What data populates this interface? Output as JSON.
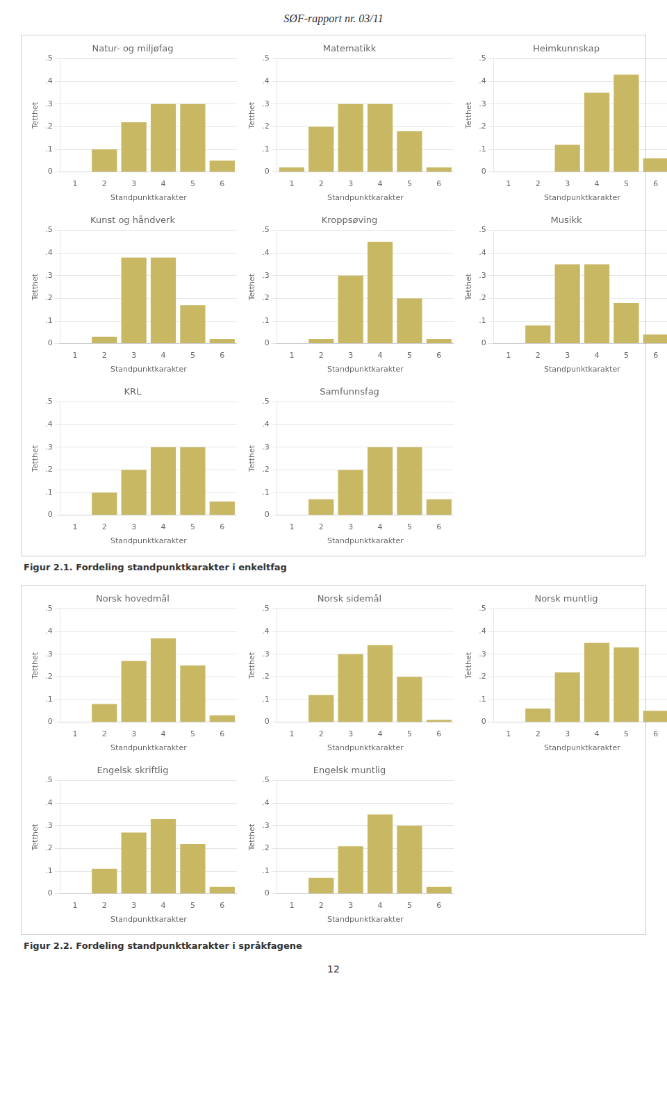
{
  "title": "SØF-rapport nr. 03/11",
  "annotations": [
    "12"
  ],
  "chart_data": [
    {
      "type": "bar",
      "title": "Natur- og miljøfag",
      "xlabel": "Standpunktkarakter",
      "ylabel": "Tetthet",
      "categories": [
        "1",
        "2",
        "3",
        "4",
        "5",
        "6"
      ],
      "values": [
        0,
        0.1,
        0.22,
        0.3,
        0.3,
        0.05
      ],
      "color": "#C8B864",
      "ylim": [
        0,
        0.5
      ],
      "yticks": [
        0,
        {
          "value": 0.1,
          "label": ".1"
        },
        {
          "value": 0.2,
          "label": ".2"
        },
        {
          "value": 0.3,
          "label": ".3"
        },
        {
          "value": 0.4,
          "label": ".4"
        },
        {
          "value": 0.5,
          "label": ".5"
        }
      ],
      "grid": true
    },
    {
      "type": "bar",
      "title": "Matematikk",
      "xlabel": "Standpunktkarakter",
      "ylabel": "Tetthet",
      "categories": [
        "1",
        "2",
        "3",
        "4",
        "5",
        "6"
      ],
      "values": [
        0.02,
        0.2,
        0.3,
        0.3,
        0.18,
        0.02
      ],
      "color": "#C8B864",
      "ylim": [
        0,
        0.5
      ],
      "yticks": [
        0,
        {
          "value": 0.1,
          "label": ".1"
        },
        {
          "value": 0.2,
          "label": ".2"
        },
        {
          "value": 0.3,
          "label": ".3"
        },
        {
          "value": 0.4,
          "label": ".4"
        },
        {
          "value": 0.5,
          "label": ".5"
        }
      ],
      "grid": true
    },
    {
      "type": "bar",
      "title": "Heimkunnskap",
      "xlabel": "Standpunktkarakter",
      "ylabel": "Tetthet",
      "categories": [
        "1",
        "2",
        "3",
        "4",
        "5",
        "6"
      ],
      "values": [
        0,
        0,
        0.12,
        0.35,
        0.43,
        0.06
      ],
      "color": "#C8B864",
      "ylim": [
        0,
        0.5
      ],
      "yticks": [
        0,
        {
          "value": 0.1,
          "label": ".1"
        },
        {
          "value": 0.2,
          "label": ".2"
        },
        {
          "value": 0.3,
          "label": ".3"
        },
        {
          "value": 0.4,
          "label": ".4"
        },
        {
          "value": 0.5,
          "label": ".5"
        }
      ],
      "grid": true
    },
    {
      "type": "bar",
      "title": "Kunst og håndverk",
      "xlabel": "Standpunktkarakter",
      "ylabel": "Tetthet",
      "categories": [
        "1",
        "2",
        "3",
        "4",
        "5",
        "6"
      ],
      "values": [
        0,
        0.03,
        0.38,
        0.38,
        0.17,
        0.02
      ],
      "color": "#C8B864",
      "ylim": [
        0,
        0.5
      ],
      "yticks": [
        0,
        {
          "value": 0.1,
          "label": ".1"
        },
        {
          "value": 0.2,
          "label": ".2"
        },
        {
          "value": 0.3,
          "label": ".3"
        },
        {
          "value": 0.4,
          "label": ".4"
        },
        {
          "value": 0.5,
          "label": ".5"
        }
      ],
      "grid": true
    },
    {
      "type": "bar",
      "title": "Kroppsøving",
      "xlabel": "Standpunktkarakter",
      "ylabel": "Tetthet",
      "categories": [
        "1",
        "2",
        "3",
        "4",
        "5",
        "6"
      ],
      "values": [
        0,
        0.02,
        0.3,
        0.45,
        0.2,
        0.02
      ],
      "color": "#C8B864",
      "ylim": [
        0,
        0.5
      ],
      "yticks": [
        0,
        {
          "value": 0.1,
          "label": ".1"
        },
        {
          "value": 0.2,
          "label": ".2"
        },
        {
          "value": 0.3,
          "label": ".3"
        },
        {
          "value": 0.4,
          "label": ".4"
        },
        {
          "value": 0.5,
          "label": ".5"
        }
      ],
      "grid": true
    },
    {
      "type": "bar",
      "title": "Musikk",
      "xlabel": "Standpunktkarakter",
      "ylabel": "Tetthet",
      "categories": [
        "1",
        "2",
        "3",
        "4",
        "5",
        "6"
      ],
      "values": [
        0,
        0.08,
        0.35,
        0.35,
        0.18,
        0.04
      ],
      "color": "#C8B864",
      "ylim": [
        0,
        0.5
      ],
      "yticks": [
        0,
        {
          "value": 0.1,
          "label": ".1"
        },
        {
          "value": 0.2,
          "label": ".2"
        },
        {
          "value": 0.3,
          "label": ".3"
        },
        {
          "value": 0.4,
          "label": ".4"
        },
        {
          "value": 0.5,
          "label": ".5"
        }
      ],
      "grid": true
    },
    {
      "type": "bar",
      "title": "KRL",
      "xlabel": "Standpunktkarakter",
      "ylabel": "Tetthet",
      "categories": [
        "1",
        "2",
        "3",
        "4",
        "5",
        "6"
      ],
      "values": [
        0,
        0.1,
        0.2,
        0.3,
        0.3,
        0.06
      ],
      "color": "#C8B864",
      "ylim": [
        0,
        0.5
      ],
      "yticks": [
        0,
        {
          "value": 0.1,
          "label": ".1"
        },
        {
          "value": 0.2,
          "label": ".2"
        },
        {
          "value": 0.3,
          "label": ".3"
        },
        {
          "value": 0.4,
          "label": ".4"
        },
        {
          "value": 0.5,
          "label": ".5"
        }
      ],
      "grid": true
    },
    {
      "type": "bar",
      "title": "Samfunnsfag",
      "xlabel": "Standpunktkarakter",
      "ylabel": "Tetthet",
      "categories": [
        "1",
        "2",
        "3",
        "4",
        "5",
        "6"
      ],
      "values": [
        0,
        0.07,
        0.2,
        0.3,
        0.3,
        0.07
      ],
      "color": "#C8B864",
      "ylim": [
        0,
        0.5
      ],
      "yticks": [
        0,
        {
          "value": 0.1,
          "label": ".1"
        },
        {
          "value": 0.2,
          "label": ".2"
        },
        {
          "value": 0.3,
          "label": ".3"
        },
        {
          "value": 0.4,
          "label": ".4"
        },
        {
          "value": 0.5,
          "label": ".5"
        }
      ],
      "grid": true,
      "annotations": [
        "Figur 2.1. Fordeling standpunktkarakter i enkeltfag"
      ]
    },
    {
      "type": "bar",
      "title": "Norsk hovedmål",
      "xlabel": "Standpunktkarakter",
      "ylabel": "Tetthet",
      "categories": [
        "1",
        "2",
        "3",
        "4",
        "5",
        "6"
      ],
      "values": [
        0,
        0.08,
        0.27,
        0.37,
        0.25,
        0.03
      ],
      "color": "#C8B864",
      "ylim": [
        0,
        0.5
      ],
      "yticks": [
        0,
        {
          "value": 0.1,
          "label": ".1"
        },
        {
          "value": 0.2,
          "label": ".2"
        },
        {
          "value": 0.3,
          "label": ".3"
        },
        {
          "value": 0.4,
          "label": ".4"
        },
        {
          "value": 0.5,
          "label": ".5"
        }
      ],
      "grid": true
    },
    {
      "type": "bar",
      "title": "Norsk sidemål",
      "xlabel": "Standpunktkarakter",
      "ylabel": "Tetthet",
      "categories": [
        "1",
        "2",
        "3",
        "4",
        "5",
        "6"
      ],
      "values": [
        0,
        0.12,
        0.3,
        0.34,
        0.2,
        0.01
      ],
      "color": "#C8B864",
      "ylim": [
        0,
        0.5
      ],
      "yticks": [
        0,
        {
          "value": 0.1,
          "label": ".1"
        },
        {
          "value": 0.2,
          "label": ".2"
        },
        {
          "value": 0.3,
          "label": ".3"
        },
        {
          "value": 0.4,
          "label": ".4"
        },
        {
          "value": 0.5,
          "label": ".5"
        }
      ],
      "grid": true
    },
    {
      "type": "bar",
      "title": "Norsk muntlig",
      "xlabel": "Standpunktkarakter",
      "ylabel": "Tetthet",
      "categories": [
        "1",
        "2",
        "3",
        "4",
        "5",
        "6"
      ],
      "values": [
        0,
        0.06,
        0.22,
        0.35,
        0.33,
        0.05
      ],
      "color": "#C8B864",
      "ylim": [
        0,
        0.5
      ],
      "yticks": [
        0,
        {
          "value": 0.1,
          "label": ".1"
        },
        {
          "value": 0.2,
          "label": ".2"
        },
        {
          "value": 0.3,
          "label": ".3"
        },
        {
          "value": 0.4,
          "label": ".4"
        },
        {
          "value": 0.5,
          "label": ".5"
        }
      ],
      "grid": true
    },
    {
      "type": "bar",
      "title": "Engelsk skriftlig",
      "xlabel": "Standpunktkarakter",
      "ylabel": "Tetthet",
      "categories": [
        "1",
        "2",
        "3",
        "4",
        "5",
        "6"
      ],
      "values": [
        0,
        0.11,
        0.27,
        0.33,
        0.22,
        0.03
      ],
      "color": "#C8B864",
      "ylim": [
        0,
        0.5
      ],
      "yticks": [
        0,
        {
          "value": 0.1,
          "label": ".1"
        },
        {
          "value": 0.2,
          "label": ".2"
        },
        {
          "value": 0.3,
          "label": ".3"
        },
        {
          "value": 0.4,
          "label": ".4"
        },
        {
          "value": 0.5,
          "label": ".5"
        }
      ],
      "grid": true
    },
    {
      "type": "bar",
      "title": "Engelsk muntlig",
      "xlabel": "Standpunktkarakter",
      "ylabel": "Tetthet",
      "categories": [
        "1",
        "2",
        "3",
        "4",
        "5",
        "6"
      ],
      "values": [
        0,
        0.07,
        0.21,
        0.35,
        0.3,
        0.03
      ],
      "color": "#C8B864",
      "ylim": [
        0,
        0.5
      ],
      "yticks": [
        0,
        {
          "value": 0.1,
          "label": ".1"
        },
        {
          "value": 0.2,
          "label": ".2"
        },
        {
          "value": 0.3,
          "label": ".3"
        },
        {
          "value": 0.4,
          "label": ".4"
        },
        {
          "value": 0.5,
          "label": ".5"
        }
      ],
      "grid": true,
      "annotations": [
        "Figur 2.2. Fordeling standpunktkarakter i språkfagene"
      ]
    }
  ]
}
